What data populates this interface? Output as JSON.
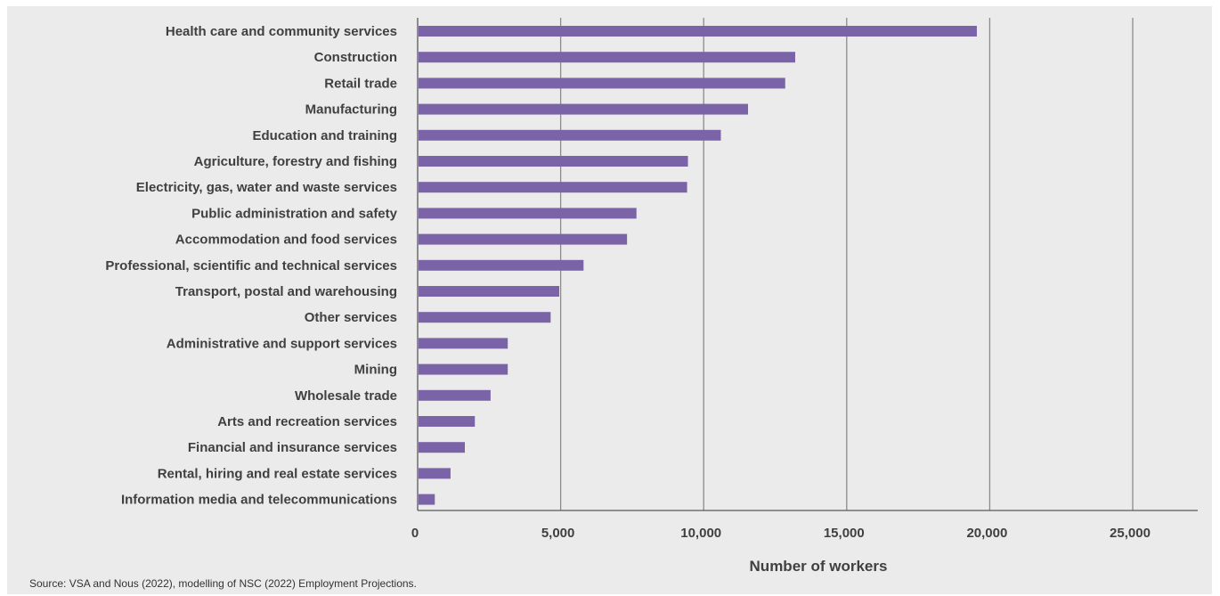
{
  "chart_data": {
    "type": "bar",
    "orientation": "horizontal",
    "categories": [
      "Health care and community services",
      "Construction",
      "Retail trade",
      "Manufacturing",
      "Education and training",
      "Agriculture, forestry and fishing",
      "Electricity, gas, water and waste services",
      "Public administration and safety",
      "Accommodation and food services",
      "Professional, scientific and technical services",
      "Transport, postal and warehousing",
      "Other services",
      "Administrative and support services",
      "Mining",
      "Wholesale trade",
      "Arts and recreation services",
      "Financial and insurance services",
      "Rental, hiring and real estate services",
      "Information media and telecommunications"
    ],
    "values": [
      19550,
      13200,
      12850,
      11550,
      10600,
      9450,
      9420,
      7650,
      7320,
      5800,
      4950,
      4650,
      3150,
      3150,
      2550,
      2000,
      1650,
      1150,
      600
    ],
    "xlabel": "Number of workers",
    "ylabel": "",
    "xlim": [
      0,
      25000
    ],
    "ticks": [
      0,
      5000,
      10000,
      15000,
      20000,
      25000
    ],
    "tick_labels": [
      "0",
      "5,000",
      "10,000",
      "15,000",
      "20,000",
      "25,000"
    ],
    "grid": true,
    "bar_color": "#7b63a8"
  },
  "source_note": "Source: VSA and Nous (2022), modelling of NSC (2022) Employment Projections."
}
